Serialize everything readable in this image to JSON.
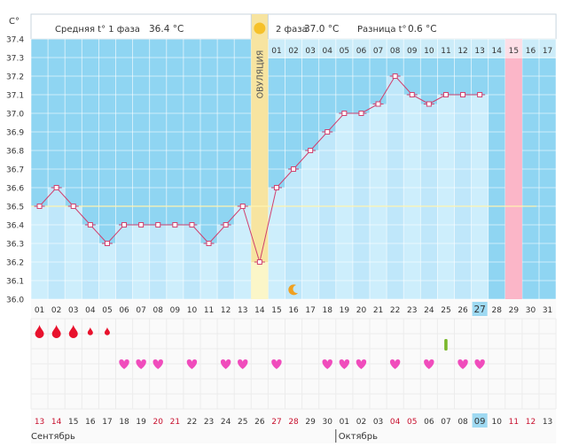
{
  "header": {
    "phase1_label": "Средняя t° 1 фаза",
    "phase1_value": "36.4 °C",
    "phase2_label": "2 фаза",
    "phase2_value": "37.0 °C",
    "diff_label": "Разница t°",
    "diff_value": "0.6 °C",
    "sun_icon": "sun-icon"
  },
  "colors": {
    "plot_bg": "#8fd5f2",
    "header_bg": "#ffffff",
    "column_fill": "#cdeefc",
    "column_fill_alt": "#bfe7fa",
    "line": "#d0406e",
    "ovulation": "#f7e4a0",
    "highlight_pink": "#fbb6c8",
    "highlight_blue": "#9ed9f2",
    "baseline": "#fff4b0",
    "grid": "#dddddd",
    "heart": "#f04cbc",
    "drop": "#e8122d",
    "mark_green": "#7ab82b",
    "weekend": "#c8102e"
  },
  "chart_data": {
    "type": "line",
    "title": "",
    "ylabel": "C°",
    "ylim": [
      36.0,
      37.4
    ],
    "yticks": [
      "36.0",
      "36.1",
      "36.2",
      "36.3",
      "36.4",
      "36.5",
      "36.6",
      "36.7",
      "36.8",
      "36.9",
      "37.0",
      "37.1",
      "37.2",
      "37.3",
      "37.4"
    ],
    "cycle_days": [
      "01",
      "02",
      "03",
      "04",
      "05",
      "06",
      "07",
      "08",
      "09",
      "10",
      "11",
      "12",
      "13",
      "14",
      "15",
      "16",
      "17",
      "18",
      "19",
      "20",
      "21",
      "22",
      "23",
      "24",
      "25",
      "26",
      "27",
      "28",
      "29",
      "30",
      "31"
    ],
    "values": [
      36.5,
      36.6,
      36.5,
      36.4,
      36.3,
      36.4,
      36.4,
      36.4,
      36.4,
      36.4,
      36.3,
      36.4,
      36.5,
      36.2,
      36.6,
      36.7,
      36.8,
      36.9,
      37.0,
      37.0,
      37.05,
      37.2,
      37.1,
      37.05,
      37.1,
      37.1,
      37.1,
      null,
      null,
      null,
      null
    ],
    "baseline": 36.5,
    "ovulation_day_index": 13,
    "ovulation_label": "ОВУЛЯЦИЯ",
    "phase2_days": [
      "01",
      "02",
      "03",
      "04",
      "05",
      "06",
      "07",
      "08",
      "09",
      "10",
      "11",
      "12",
      "13",
      "14",
      "15",
      "16",
      "17"
    ],
    "phase2_start_index": 14,
    "phase2_highlight_label": "15",
    "today_index": 26,
    "today_label": "27",
    "moon_index": 15,
    "moon_icon": "moon-icon",
    "bleeding": [
      {
        "day_index": 0,
        "size": "large"
      },
      {
        "day_index": 1,
        "size": "large"
      },
      {
        "day_index": 2,
        "size": "large"
      },
      {
        "day_index": 3,
        "size": "small"
      },
      {
        "day_index": 4,
        "size": "small"
      }
    ],
    "intercourse_days": [
      5,
      6,
      7,
      9,
      11,
      12,
      14,
      17,
      18,
      19,
      21,
      23,
      25,
      26
    ],
    "mark_days": [
      24
    ],
    "dates": [
      "13",
      "14",
      "15",
      "16",
      "17",
      "18",
      "19",
      "20",
      "21",
      "22",
      "23",
      "24",
      "25",
      "26",
      "27",
      "28",
      "29",
      "30",
      "01",
      "02",
      "03",
      "04",
      "05",
      "06",
      "07",
      "08",
      "09",
      "10",
      "11",
      "12",
      "13"
    ],
    "weekend_dates": [
      0,
      1,
      7,
      8,
      14,
      15,
      21,
      22,
      28,
      29
    ],
    "today_date_label": "09",
    "months": [
      {
        "label": "Сентябрь",
        "start_index": 0
      },
      {
        "label": "Октябрь",
        "start_index": 18
      }
    ]
  }
}
